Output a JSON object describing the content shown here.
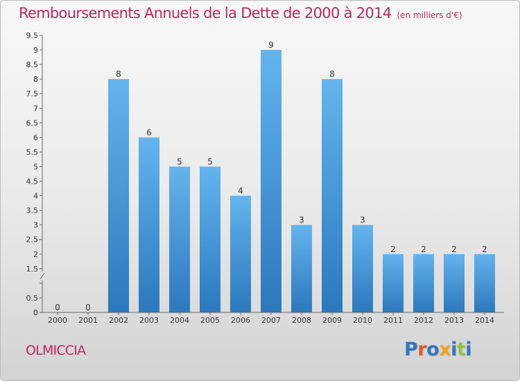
{
  "header": {
    "title": "Remboursements Annuels de la Dette de 2000 à 2014",
    "subtitle": "(en milliers d'€)"
  },
  "footer": {
    "commune": "OLMICCIA",
    "logo": "Proxiti"
  },
  "colors": {
    "title": "#c0245e",
    "bar_top": "#64b4ee",
    "bar_bottom": "#2b78bd",
    "logo_letters": [
      "#2f76c4",
      "#e15a22",
      "#2f76c4",
      "#f2a11a",
      "#2f76c4",
      "#8cc63e",
      "#2f76c4"
    ]
  },
  "chart_data": {
    "type": "bar",
    "title": "Remboursements Annuels de la Dette de 2000 à 2014",
    "subtitle": "(en milliers d'€)",
    "categories": [
      "2000",
      "2001",
      "2002",
      "2003",
      "2004",
      "2005",
      "2006",
      "2007",
      "2008",
      "2009",
      "2010",
      "2011",
      "2012",
      "2013",
      "2014"
    ],
    "values": [
      0,
      0,
      8,
      6,
      5,
      5,
      4,
      9,
      3,
      8,
      3,
      2,
      2,
      2,
      2
    ],
    "value_labels": [
      "0",
      "0",
      "8",
      "6",
      "5",
      "5",
      "4",
      "9",
      "3",
      "8",
      "3",
      "2",
      "2",
      "2",
      "2"
    ],
    "xlabel": "",
    "ylabel": "",
    "ylim": [
      0,
      9.5
    ],
    "yticks": [
      "0",
      "0.5",
      "1",
      "1.5",
      "2",
      "2.5",
      "3",
      "3.5",
      "4",
      "4.5",
      "5",
      "5.5",
      "6",
      "6.5",
      "7",
      "7.5",
      "8",
      "8.5",
      "9",
      "9.5"
    ],
    "axis_break_between": [
      "1",
      "1.5"
    ],
    "grid": false,
    "legend": "none"
  }
}
